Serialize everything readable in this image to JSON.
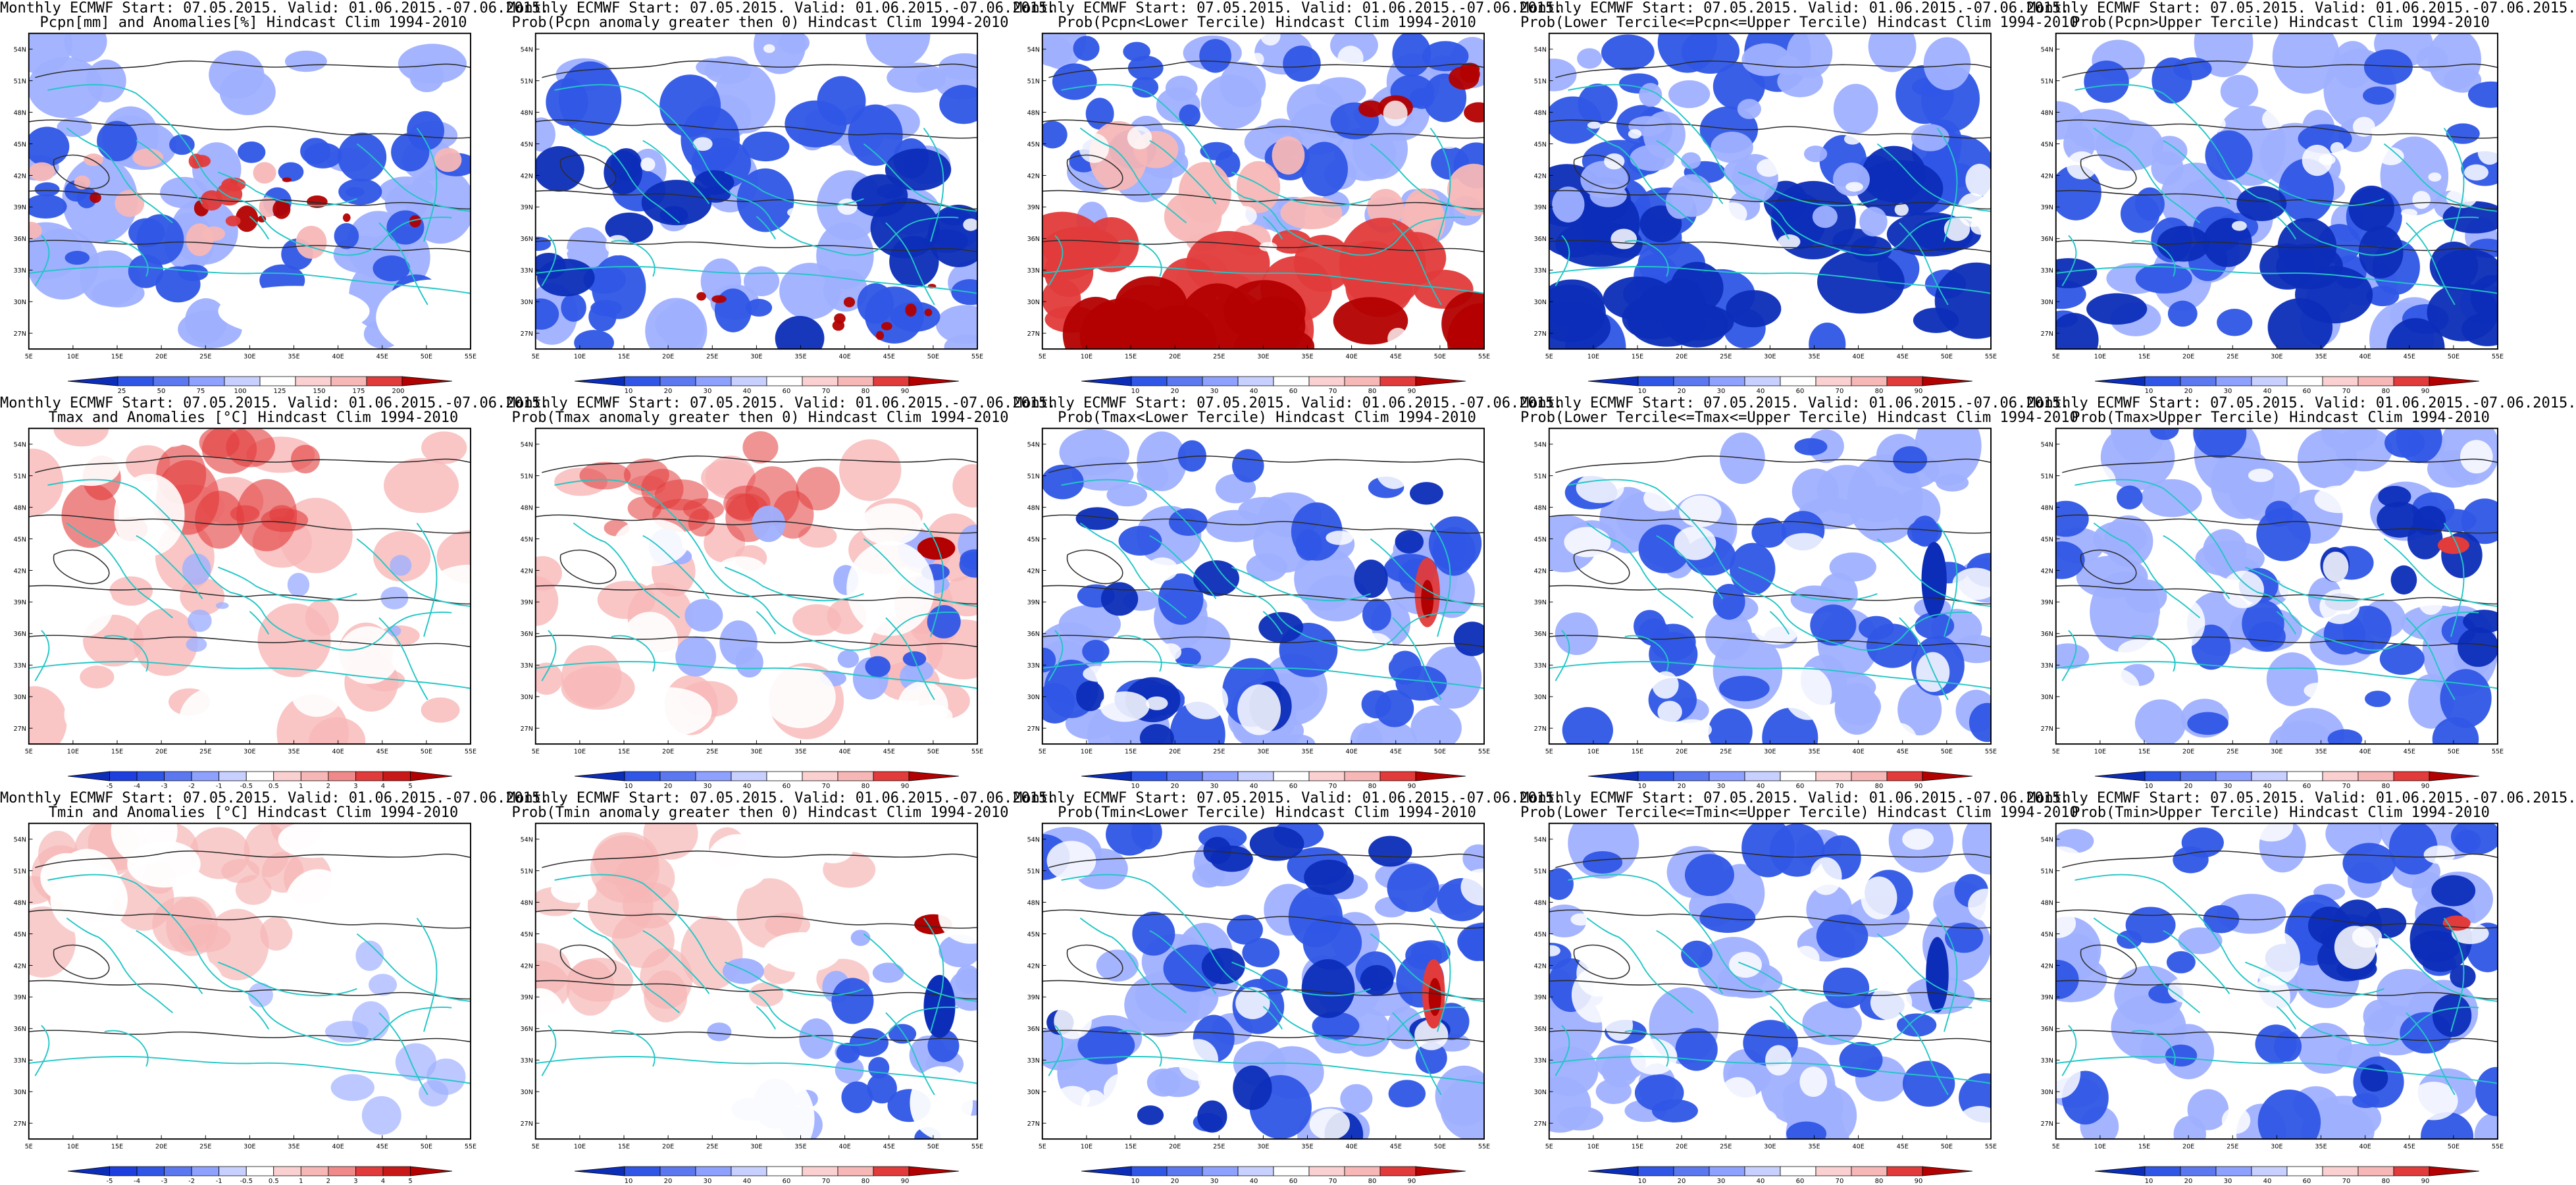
{
  "panels": [
    {
      "id": "p1",
      "title1": "Monthly ECMWF Start: 07.05.2015. Valid: 01.06.2015.-07.06.2015.",
      "title2": "Pcpn[mm] and Anomalies[%] Hindcast Clim 1994-2010",
      "scheme": "pcpn_anom",
      "colorbar": {
        "labels": [
          "25",
          "50",
          "75",
          "100",
          "125",
          "150",
          "175",
          "200"
        ]
      }
    },
    {
      "id": "p2",
      "title1": "Monthly ECMWF Start: 07.05.2015. Valid: 01.06.2015.-07.06.2015.",
      "title2": "Prob(Pcpn anomaly greater then 0) Hindcast Clim 1994-2010",
      "scheme": "prob_pcpn_pos",
      "colorbar": {
        "labels": [
          "10",
          "20",
          "30",
          "40",
          "60",
          "70",
          "80",
          "90"
        ]
      }
    },
    {
      "id": "p3",
      "title1": "Monthly ECMWF Start: 07.05.2015. Valid: 01.06.2015.-07.06.2015.",
      "title2": "Prob(Pcpn<Lower Tercile) Hindcast Clim 1994-2010",
      "scheme": "prob_pcpn_low",
      "colorbar": {
        "labels": [
          "10",
          "20",
          "30",
          "40",
          "60",
          "70",
          "80",
          "90"
        ]
      }
    },
    {
      "id": "p4",
      "title1": "Monthly ECMWF Start: 07.05.2015. Valid: 01.06.2015.-07.06.2015.",
      "title2": "Prob(Lower Tercile<=Pcpn<=Upper Tercile) Hindcast Clim 1994-2010",
      "scheme": "prob_pcpn_mid",
      "colorbar": {
        "labels": [
          "10",
          "20",
          "30",
          "40",
          "60",
          "70",
          "80",
          "90"
        ]
      }
    },
    {
      "id": "p5",
      "title1": "Monthly ECMWF Start: 07.05.2015. Valid: 01.06.2015.-07.06.2015.",
      "title2": "Prob(Pcpn>Upper Tercile) Hindcast Clim 1994-2010",
      "scheme": "prob_pcpn_high",
      "colorbar": {
        "labels": [
          "10",
          "20",
          "30",
          "40",
          "60",
          "70",
          "80",
          "90"
        ]
      }
    },
    {
      "id": "p6",
      "title1": "Monthly ECMWF Start: 07.05.2015. Valid: 01.06.2015.-07.06.2015.",
      "title2": "Tmax and Anomalies [°C] Hindcast Clim 1994-2010",
      "scheme": "tmax_anom",
      "colorbar": {
        "labels": [
          "-5",
          "-4",
          "-3",
          "-2",
          "-1",
          "-0.5",
          "0.5",
          "1",
          "2",
          "3",
          "4",
          "5"
        ]
      }
    },
    {
      "id": "p7",
      "title1": "Monthly ECMWF Start: 07.05.2015. Valid: 01.06.2015.-07.06.2015.",
      "title2": "Prob(Tmax anomaly greater then 0) Hindcast Clim 1994-2010",
      "scheme": "prob_tmax_pos",
      "colorbar": {
        "labels": [
          "10",
          "20",
          "30",
          "40",
          "60",
          "70",
          "80",
          "90"
        ]
      }
    },
    {
      "id": "p8",
      "title1": "Monthly ECMWF Start: 07.05.2015. Valid: 01.06.2015.-07.06.2015.",
      "title2": "Prob(Tmax<Lower Tercile) Hindcast Clim 1994-2010",
      "scheme": "prob_tmax_low",
      "colorbar": {
        "labels": [
          "10",
          "20",
          "30",
          "40",
          "60",
          "70",
          "80",
          "90"
        ]
      }
    },
    {
      "id": "p9",
      "title1": "Monthly ECMWF Start: 07.05.2015. Valid: 01.06.2015.-07.06.2015.",
      "title2": "Prob(Lower Tercile<=Tmax<=Upper Tercile) Hindcast Clim 1994-2010",
      "scheme": "prob_tmax_mid",
      "colorbar": {
        "labels": [
          "10",
          "20",
          "30",
          "40",
          "60",
          "70",
          "80",
          "90"
        ]
      }
    },
    {
      "id": "p10",
      "title1": "Monthly ECMWF Start: 07.05.2015. Valid: 01.06.2015.-07.06.2015.",
      "title2": "Prob(Tmax>Upper Tercile) Hindcast Clim 1994-2010",
      "scheme": "prob_tmax_high",
      "colorbar": {
        "labels": [
          "10",
          "20",
          "30",
          "40",
          "60",
          "70",
          "80",
          "90"
        ]
      }
    },
    {
      "id": "p11",
      "title1": "Monthly ECMWF Start: 07.05.2015. Valid: 01.06.2015.-07.06.2015.",
      "title2": "Tmin and Anomalies [°C] Hindcast Clim 1994-2010",
      "scheme": "tmin_anom",
      "colorbar": {
        "labels": [
          "-5",
          "-4",
          "-3",
          "-2",
          "-1",
          "-0.5",
          "0.5",
          "1",
          "2",
          "3",
          "4",
          "5"
        ]
      }
    },
    {
      "id": "p12",
      "title1": "Monthly ECMWF Start: 07.05.2015. Valid: 01.06.2015.-07.06.2015.",
      "title2": "Prob(Tmin anomaly greater then 0) Hindcast Clim 1994-2010",
      "scheme": "prob_tmin_pos",
      "colorbar": {
        "labels": [
          "10",
          "20",
          "30",
          "40",
          "60",
          "70",
          "80",
          "90"
        ]
      }
    },
    {
      "id": "p13",
      "title1": "Monthly ECMWF Start: 07.05.2015. Valid: 01.06.2015.-07.06.2015.",
      "title2": "Prob(Tmin<Lower Tercile) Hindcast Clim 1994-2010",
      "scheme": "prob_tmin_low",
      "colorbar": {
        "labels": [
          "10",
          "20",
          "30",
          "40",
          "60",
          "70",
          "80",
          "90"
        ]
      }
    },
    {
      "id": "p14",
      "title1": "Monthly ECMWF Start: 07.05.2015. Valid: 01.06.2015.-07.06.2015.",
      "title2": "Prob(Lower Tercile<=Tmin<=Upper Tercile) Hindcast Clim 1994-2010",
      "scheme": "prob_tmin_mid",
      "colorbar": {
        "labels": [
          "10",
          "20",
          "30",
          "40",
          "60",
          "70",
          "80",
          "90"
        ]
      }
    },
    {
      "id": "p15",
      "title1": "Monthly ECMWF Start: 07.05.2015. Valid: 01.06.2015.-07.06.2015.",
      "title2": "Prob(Tmin>Upper Tercile) Hindcast Clim 1994-2010",
      "scheme": "prob_tmin_high",
      "colorbar": {
        "labels": [
          "10",
          "20",
          "30",
          "40",
          "60",
          "70",
          "80",
          "90"
        ]
      }
    }
  ],
  "map_axes": {
    "lon_labels": [
      "5E",
      "10E",
      "15E",
      "20E",
      "25E",
      "30E",
      "35E",
      "40E",
      "45E",
      "50E",
      "55E"
    ],
    "lat_labels": [
      "27N",
      "30N",
      "33N",
      "36N",
      "39N",
      "42N",
      "45N",
      "48N",
      "51N",
      "54N"
    ]
  },
  "colors": {
    "outline": "#22c6c6",
    "contour": "#2b2b2b",
    "red_dark": "#b30000",
    "red": "#e23b3b",
    "red_light": "#f7b7b7",
    "blue_dark": "#0c2db8",
    "blue": "#2f56e6",
    "blue_light": "#9fb0ff",
    "white": "#ffffff"
  }
}
